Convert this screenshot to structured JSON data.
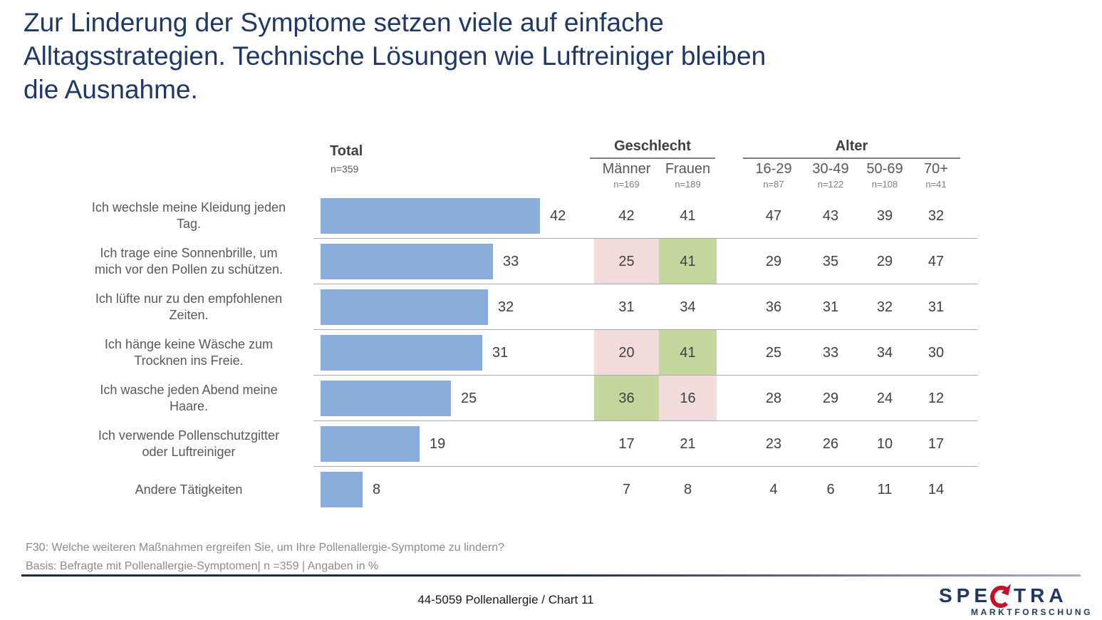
{
  "slide": {
    "title_lines": [
      "Zur Linderung der Symptome setzen viele auf einfache",
      "Alltagsstrategien. Technische Lösungen wie Luftreiniger bleiben",
      "die Ausnahme."
    ],
    "footnote_line1": "F30: Welche weiteren Maßnahmen ergreifen Sie, um Ihre Pollenallergie-Symptome zu lindern?",
    "footnote_line2": "Basis: Befragte mit Pollenallergie-Symptomen| n =359 | Angaben in %",
    "page_footer": "44-5059 Pollenallergie  /  Chart 11"
  },
  "table_header": {
    "total_label": "Total",
    "total_n": "n=359",
    "geschlecht_label": "Geschlecht",
    "geschlecht_cols": [
      {
        "label": "Männer",
        "n": "n=169"
      },
      {
        "label": "Frauen",
        "n": "n=189"
      }
    ],
    "alter_label": "Alter",
    "alter_cols": [
      {
        "label": "16-29",
        "n": "n=87"
      },
      {
        "label": "30-49",
        "n": "n=122"
      },
      {
        "label": "50-69",
        "n": "n=108"
      },
      {
        "label": "70+",
        "n": "n=41"
      }
    ]
  },
  "chart_data": {
    "type": "bar",
    "orientation": "horizontal",
    "unit": "%",
    "data_labels": true,
    "grid": false,
    "categories": [
      "Ich wechsle meine Kleidung jeden Tag.",
      "Ich trage eine Sonnenbrille, um mich vor den Pollen zu schützen.",
      "Ich lüfte nur zu den empfohlenen Zeiten.",
      "Ich hänge keine Wäsche zum Trocknen ins Freie.",
      "Ich wasche jeden Abend meine Haare.",
      "Ich verwende Pollenschutzgitter oder Luftreiniger",
      "Andere Tätigkeiten"
    ],
    "series": [
      {
        "name": "Total",
        "n": 359,
        "values": [
          42,
          33,
          32,
          31,
          25,
          19,
          8
        ]
      },
      {
        "name": "Männer",
        "n": 169,
        "values": [
          42,
          25,
          31,
          20,
          36,
          17,
          7
        ]
      },
      {
        "name": "Frauen",
        "n": 189,
        "values": [
          41,
          41,
          34,
          41,
          16,
          21,
          8
        ]
      },
      {
        "name": "16-29",
        "n": 87,
        "values": [
          47,
          29,
          36,
          25,
          28,
          23,
          4
        ]
      },
      {
        "name": "30-49",
        "n": 122,
        "values": [
          43,
          35,
          31,
          33,
          29,
          26,
          6
        ]
      },
      {
        "name": "50-69",
        "n": 108,
        "values": [
          39,
          29,
          32,
          34,
          24,
          10,
          11
        ]
      },
      {
        "name": "70+",
        "n": 41,
        "values": [
          32,
          47,
          31,
          30,
          12,
          17,
          14
        ]
      }
    ],
    "rows": [
      {
        "label": "Ich wechsle meine Kleidung jeden Tag.",
        "label_lines": [
          "Ich wechsle meine Kleidung jeden",
          "Tag."
        ],
        "total": 42,
        "maenner": 42,
        "frauen": 41,
        "maenner_hl": null,
        "frauen_hl": null,
        "age": [
          47,
          43,
          39,
          32
        ]
      },
      {
        "label": "Ich trage eine Sonnenbrille, um mich vor den Pollen zu schützen.",
        "label_lines": [
          "Ich trage eine Sonnenbrille, um",
          "mich vor den Pollen zu schützen."
        ],
        "total": 33,
        "maenner": 25,
        "frauen": 41,
        "maenner_hl": "pink",
        "frauen_hl": "green",
        "age": [
          29,
          35,
          29,
          47
        ]
      },
      {
        "label": "Ich lüfte nur zu den empfohlenen Zeiten.",
        "label_lines": [
          "Ich lüfte nur zu den empfohlenen",
          "Zeiten."
        ],
        "total": 32,
        "maenner": 31,
        "frauen": 34,
        "maenner_hl": null,
        "frauen_hl": null,
        "age": [
          36,
          31,
          32,
          31
        ]
      },
      {
        "label": "Ich hänge keine Wäsche zum Trocknen ins Freie.",
        "label_lines": [
          "Ich hänge keine Wäsche zum",
          "Trocknen ins Freie."
        ],
        "total": 31,
        "maenner": 20,
        "frauen": 41,
        "maenner_hl": "pink",
        "frauen_hl": "green",
        "age": [
          25,
          33,
          34,
          30
        ]
      },
      {
        "label": "Ich wasche jeden Abend meine Haare.",
        "label_lines": [
          "Ich wasche jeden Abend meine",
          "Haare."
        ],
        "total": 25,
        "maenner": 36,
        "frauen": 16,
        "maenner_hl": "green",
        "frauen_hl": "pink",
        "age": [
          28,
          29,
          24,
          12
        ]
      },
      {
        "label": "Ich verwende Pollenschutzgitter oder Luftreiniger",
        "label_lines": [
          "Ich verwende Pollenschutzgitter",
          "oder Luftreiniger"
        ],
        "total": 19,
        "maenner": 17,
        "frauen": 21,
        "maenner_hl": null,
        "frauen_hl": null,
        "age": [
          23,
          26,
          10,
          17
        ]
      },
      {
        "label": "Andere Tätigkeiten",
        "label_lines": [
          "Andere Tätigkeiten"
        ],
        "total": 8,
        "maenner": 7,
        "frauen": 8,
        "maenner_hl": null,
        "frauen_hl": null,
        "age": [
          4,
          6,
          11,
          14
        ]
      }
    ]
  },
  "logo": {
    "word_pre": "SPE",
    "word_post": "TRA",
    "subtitle": "MARKTFORSCHUNG"
  },
  "colors": {
    "title_navy": "#1F3864",
    "bar_blue": "#88ADD8",
    "highlight_pink": "#F2DCDB",
    "highlight_green": "#C3D69B",
    "logo_red": "#C8102E",
    "text_gray": "#595959",
    "value_gray": "#404040"
  }
}
